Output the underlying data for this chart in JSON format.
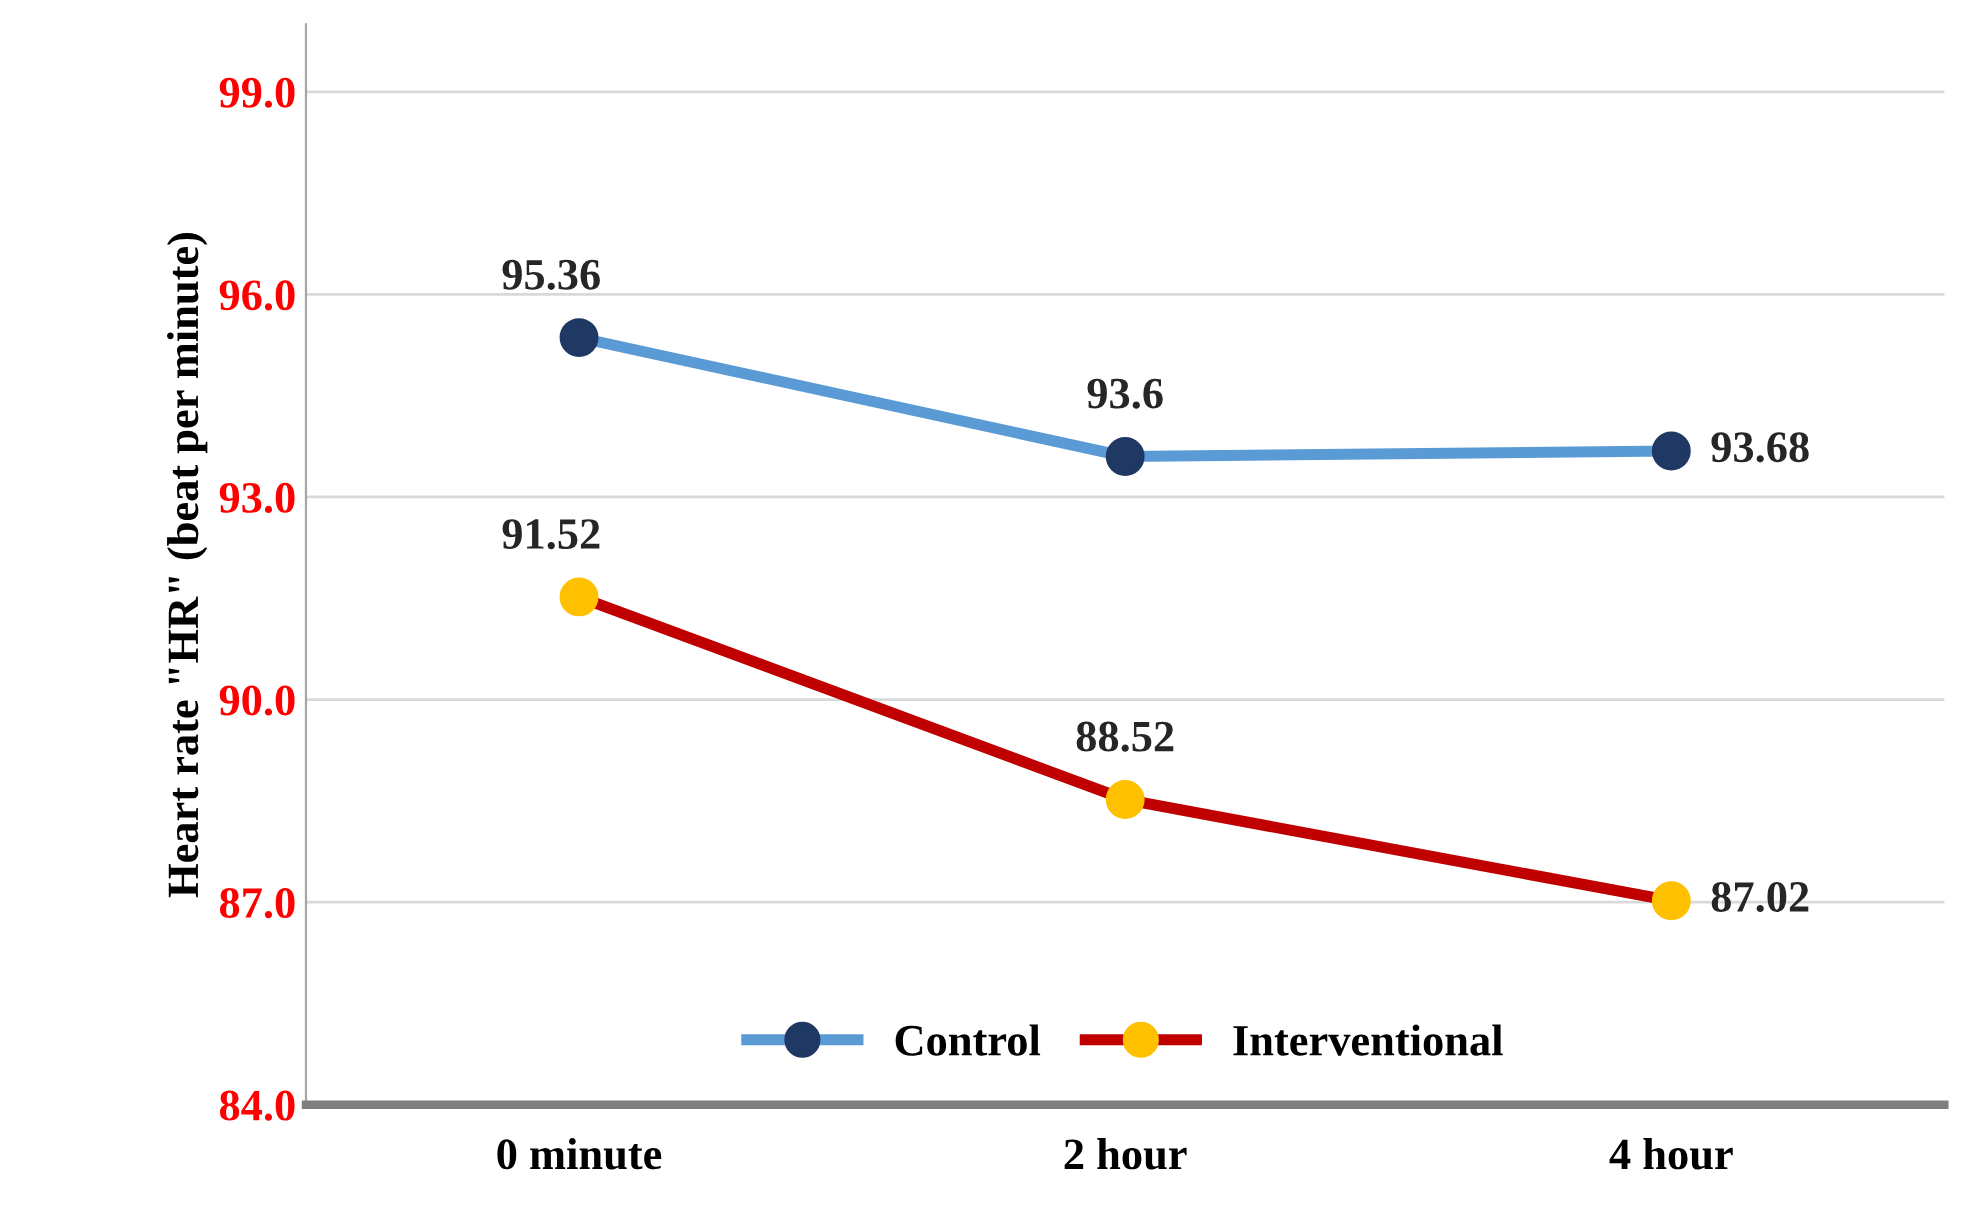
{
  "chart_data": {
    "type": "line",
    "ylabel": "Heart rate \"HR\" (beat per minute)",
    "categories": [
      "0 minute",
      "2 hour",
      "4 hour"
    ],
    "series": [
      {
        "name": "Control",
        "color": "#5b9bd5",
        "colors": [
          "#203864",
          "#203864",
          "#203864"
        ],
        "values": [
          95.36,
          93.6,
          93.68
        ]
      },
      {
        "name": "Interventional",
        "color": "#c00000",
        "colors": [
          "#ffc000",
          "#ffc000",
          "#ffc000"
        ],
        "values": [
          91.52,
          88.52,
          87.02
        ]
      }
    ],
    "ylim": [
      84,
      100
    ],
    "yticks": [
      {
        "value": 84,
        "label": "84.0"
      },
      {
        "value": 87,
        "label": "87.0"
      },
      {
        "value": 90,
        "label": "90.0"
      },
      {
        "value": 93,
        "label": "93.0"
      },
      {
        "value": 96,
        "label": "96.0"
      },
      {
        "value": 99,
        "label": "99.0"
      }
    ],
    "grid": "y",
    "legend": "bottom",
    "marker": "circle",
    "line_style": "solid",
    "data_labels": true
  }
}
